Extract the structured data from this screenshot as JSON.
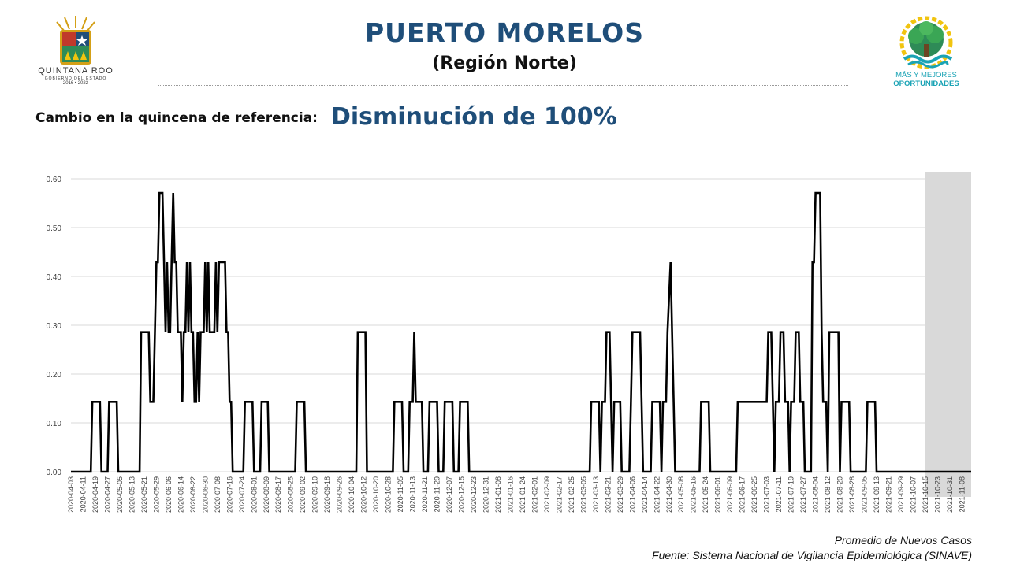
{
  "header": {
    "title": "PUERTO MORELOS",
    "subtitle": "(Región Norte)",
    "change_label": "Cambio en la quincena de referencia:",
    "change_value": "Disminución de 100%"
  },
  "logos": {
    "left_name": "QUINTANA ROO",
    "left_sub": "GOBIERNO DEL ESTADO",
    "left_years": "2016 • 2022",
    "right_line1": "MÁS Y MEJORES",
    "right_line2": "OPORTUNIDADES"
  },
  "footer": {
    "note": "Promedio de Nuevos Casos",
    "source": "Fuente: Sistema Nacional de Vigilancia Epidemiológica (SINAVE)"
  },
  "colors": {
    "title": "#1f4e79",
    "line": "#000000",
    "shade": "#d9d9d9",
    "grid": "#d9d9d9",
    "logo_teal": "#1aa3b5"
  },
  "chart_data": {
    "type": "line",
    "x_start": "2020-04-03",
    "x_end": "2021-11-14",
    "ylim": [
      0,
      0.6
    ],
    "yticks": [
      "0.00",
      "0.10",
      "0.20",
      "0.30",
      "0.40",
      "0.50",
      "0.60"
    ],
    "xticks": [
      "2020-04-03",
      "2020-04-11",
      "2020-04-19",
      "2020-04-27",
      "2020-05-05",
      "2020-05-13",
      "2020-05-21",
      "2020-05-29",
      "2020-06-06",
      "2020-06-14",
      "2020-06-22",
      "2020-06-30",
      "2020-07-08",
      "2020-07-16",
      "2020-07-24",
      "2020-08-01",
      "2020-08-09",
      "2020-08-17",
      "2020-08-25",
      "2020-09-02",
      "2020-09-10",
      "2020-09-18",
      "2020-09-26",
      "2020-10-04",
      "2020-10-12",
      "2020-10-20",
      "2020-10-28",
      "2020-11-05",
      "2020-11-13",
      "2020-11-21",
      "2020-11-29",
      "2020-12-07",
      "2020-12-15",
      "2020-12-23",
      "2020-12-31",
      "2021-01-08",
      "2021-01-16",
      "2021-01-24",
      "2021-02-01",
      "2021-02-09",
      "2021-02-17",
      "2021-02-25",
      "2021-03-05",
      "2021-03-13",
      "2021-03-21",
      "2021-03-29",
      "2021-04-06",
      "2021-04-14",
      "2021-04-22",
      "2021-04-30",
      "2021-05-08",
      "2021-05-16",
      "2021-05-24",
      "2021-06-01",
      "2021-06-09",
      "2021-06-17",
      "2021-06-25",
      "2021-07-03",
      "2021-07-11",
      "2021-07-19",
      "2021-07-27",
      "2021-08-04",
      "2021-08-12",
      "2021-08-20",
      "2021-08-28",
      "2021-09-05",
      "2021-09-13",
      "2021-09-21",
      "2021-09-29",
      "2021-10-07",
      "2021-10-15",
      "2021-10-23",
      "2021-10-31",
      "2021-11-08"
    ],
    "shaded_range": [
      "2021-10-15",
      "2021-11-14"
    ],
    "series": [
      {
        "color": "#000000",
        "points": [
          [
            "2020-04-03",
            0
          ],
          [
            "2020-04-16",
            0
          ],
          [
            "2020-04-17",
            0.143
          ],
          [
            "2020-04-22",
            0.143
          ],
          [
            "2020-04-23",
            0
          ],
          [
            "2020-04-27",
            0
          ],
          [
            "2020-04-28",
            0.143
          ],
          [
            "2020-05-03",
            0.143
          ],
          [
            "2020-05-04",
            0
          ],
          [
            "2020-05-18",
            0
          ],
          [
            "2020-05-19",
            0.286
          ],
          [
            "2020-05-24",
            0.286
          ],
          [
            "2020-05-25",
            0.143
          ],
          [
            "2020-05-27",
            0.143
          ],
          [
            "2020-05-28",
            0.286
          ],
          [
            "2020-05-29",
            0.429
          ],
          [
            "2020-05-30",
            0.429
          ],
          [
            "2020-05-31",
            0.571
          ],
          [
            "2020-06-02",
            0.571
          ],
          [
            "2020-06-03",
            0.429
          ],
          [
            "2020-06-04",
            0.286
          ],
          [
            "2020-06-05",
            0.429
          ],
          [
            "2020-06-06",
            0.286
          ],
          [
            "2020-06-07",
            0.286
          ],
          [
            "2020-06-08",
            0.429
          ],
          [
            "2020-06-09",
            0.571
          ],
          [
            "2020-06-10",
            0.429
          ],
          [
            "2020-06-11",
            0.429
          ],
          [
            "2020-06-12",
            0.286
          ],
          [
            "2020-06-14",
            0.286
          ],
          [
            "2020-06-15",
            0.143
          ],
          [
            "2020-06-16",
            0.286
          ],
          [
            "2020-06-17",
            0.286
          ],
          [
            "2020-06-18",
            0.429
          ],
          [
            "2020-06-19",
            0.286
          ],
          [
            "2020-06-20",
            0.429
          ],
          [
            "2020-06-21",
            0.286
          ],
          [
            "2020-06-22",
            0.286
          ],
          [
            "2020-06-23",
            0.143
          ],
          [
            "2020-06-24",
            0.143
          ],
          [
            "2020-06-25",
            0.286
          ],
          [
            "2020-06-26",
            0.143
          ],
          [
            "2020-06-27",
            0.286
          ],
          [
            "2020-06-29",
            0.286
          ],
          [
            "2020-06-30",
            0.429
          ],
          [
            "2020-07-01",
            0.286
          ],
          [
            "2020-07-02",
            0.429
          ],
          [
            "2020-07-03",
            0.286
          ],
          [
            "2020-07-06",
            0.286
          ],
          [
            "2020-07-07",
            0.429
          ],
          [
            "2020-07-08",
            0.286
          ],
          [
            "2020-07-09",
            0.429
          ],
          [
            "2020-07-13",
            0.429
          ],
          [
            "2020-07-14",
            0.286
          ],
          [
            "2020-07-15",
            0.286
          ],
          [
            "2020-07-16",
            0.143
          ],
          [
            "2020-07-17",
            0.143
          ],
          [
            "2020-07-18",
            0
          ],
          [
            "2020-07-25",
            0
          ],
          [
            "2020-07-26",
            0.143
          ],
          [
            "2020-07-31",
            0.143
          ],
          [
            "2020-08-01",
            0
          ],
          [
            "2020-08-05",
            0
          ],
          [
            "2020-08-06",
            0.143
          ],
          [
            "2020-08-10",
            0.143
          ],
          [
            "2020-08-11",
            0
          ],
          [
            "2020-08-28",
            0
          ],
          [
            "2020-08-29",
            0.143
          ],
          [
            "2020-09-03",
            0.143
          ],
          [
            "2020-09-04",
            0
          ],
          [
            "2020-10-07",
            0
          ],
          [
            "2020-10-08",
            0.286
          ],
          [
            "2020-10-13",
            0.286
          ],
          [
            "2020-10-14",
            0
          ],
          [
            "2020-10-31",
            0
          ],
          [
            "2020-11-01",
            0.143
          ],
          [
            "2020-11-06",
            0.143
          ],
          [
            "2020-11-07",
            0
          ],
          [
            "2020-11-10",
            0
          ],
          [
            "2020-11-11",
            0.143
          ],
          [
            "2020-11-13",
            0.143
          ],
          [
            "2020-11-14",
            0.286
          ],
          [
            "2020-11-15",
            0.143
          ],
          [
            "2020-11-19",
            0.143
          ],
          [
            "2020-11-20",
            0
          ],
          [
            "2020-11-23",
            0
          ],
          [
            "2020-11-24",
            0.143
          ],
          [
            "2020-11-29",
            0.143
          ],
          [
            "2020-11-30",
            0
          ],
          [
            "2020-12-03",
            0
          ],
          [
            "2020-12-04",
            0.143
          ],
          [
            "2020-12-09",
            0.143
          ],
          [
            "2020-12-10",
            0
          ],
          [
            "2020-12-13",
            0
          ],
          [
            "2020-12-14",
            0.143
          ],
          [
            "2020-12-19",
            0.143
          ],
          [
            "2020-12-20",
            0
          ],
          [
            "2021-03-09",
            0
          ],
          [
            "2021-03-10",
            0.143
          ],
          [
            "2021-03-15",
            0.143
          ],
          [
            "2021-03-16",
            0
          ],
          [
            "2021-03-17",
            0.143
          ],
          [
            "2021-03-19",
            0.143
          ],
          [
            "2021-03-20",
            0.286
          ],
          [
            "2021-03-22",
            0.286
          ],
          [
            "2021-03-23",
            0.143
          ],
          [
            "2021-03-24",
            0
          ],
          [
            "2021-03-25",
            0.143
          ],
          [
            "2021-03-29",
            0.143
          ],
          [
            "2021-03-30",
            0
          ],
          [
            "2021-04-04",
            0
          ],
          [
            "2021-04-05",
            0.143
          ],
          [
            "2021-04-06",
            0.286
          ],
          [
            "2021-04-11",
            0.286
          ],
          [
            "2021-04-12",
            0.143
          ],
          [
            "2021-04-13",
            0
          ],
          [
            "2021-04-18",
            0
          ],
          [
            "2021-04-19",
            0.143
          ],
          [
            "2021-04-24",
            0.143
          ],
          [
            "2021-04-25",
            0
          ],
          [
            "2021-04-26",
            0.143
          ],
          [
            "2021-04-28",
            0.143
          ],
          [
            "2021-04-29",
            0.286
          ],
          [
            "2021-05-01",
            0.429
          ],
          [
            "2021-05-02",
            0.286
          ],
          [
            "2021-05-03",
            0.143
          ],
          [
            "2021-05-04",
            0
          ],
          [
            "2021-05-20",
            0
          ],
          [
            "2021-05-21",
            0.143
          ],
          [
            "2021-05-26",
            0.143
          ],
          [
            "2021-05-27",
            0
          ],
          [
            "2021-06-13",
            0
          ],
          [
            "2021-06-14",
            0.143
          ],
          [
            "2021-06-22",
            0.143
          ],
          [
            "2021-06-23",
            0.143
          ],
          [
            "2021-06-24",
            0.143
          ],
          [
            "2021-06-26",
            0.143
          ],
          [
            "2021-06-27",
            0.143
          ],
          [
            "2021-06-29",
            0.143
          ],
          [
            "2021-07-03",
            0.143
          ],
          [
            "2021-07-04",
            0.286
          ],
          [
            "2021-07-06",
            0.286
          ],
          [
            "2021-07-07",
            0.143
          ],
          [
            "2021-07-08",
            0
          ],
          [
            "2021-07-09",
            0.143
          ],
          [
            "2021-07-11",
            0.143
          ],
          [
            "2021-07-12",
            0.286
          ],
          [
            "2021-07-14",
            0.286
          ],
          [
            "2021-07-15",
            0.143
          ],
          [
            "2021-07-17",
            0.143
          ],
          [
            "2021-07-18",
            0
          ],
          [
            "2021-07-19",
            0.143
          ],
          [
            "2021-07-21",
            0.143
          ],
          [
            "2021-07-22",
            0.286
          ],
          [
            "2021-07-24",
            0.286
          ],
          [
            "2021-07-25",
            0.143
          ],
          [
            "2021-07-27",
            0.143
          ],
          [
            "2021-07-28",
            0
          ],
          [
            "2021-08-01",
            0
          ],
          [
            "2021-08-02",
            0.429
          ],
          [
            "2021-08-03",
            0.429
          ],
          [
            "2021-08-04",
            0.571
          ],
          [
            "2021-08-07",
            0.571
          ],
          [
            "2021-08-08",
            0.286
          ],
          [
            "2021-08-09",
            0.143
          ],
          [
            "2021-08-11",
            0.143
          ],
          [
            "2021-08-12",
            0
          ],
          [
            "2021-08-13",
            0.286
          ],
          [
            "2021-08-19",
            0.286
          ],
          [
            "2021-08-20",
            0
          ],
          [
            "2021-08-21",
            0.143
          ],
          [
            "2021-08-26",
            0.143
          ],
          [
            "2021-08-27",
            0
          ],
          [
            "2021-09-06",
            0
          ],
          [
            "2021-09-07",
            0.143
          ],
          [
            "2021-09-12",
            0.143
          ],
          [
            "2021-09-13",
            0
          ],
          [
            "2021-11-14",
            0
          ]
        ]
      }
    ]
  }
}
